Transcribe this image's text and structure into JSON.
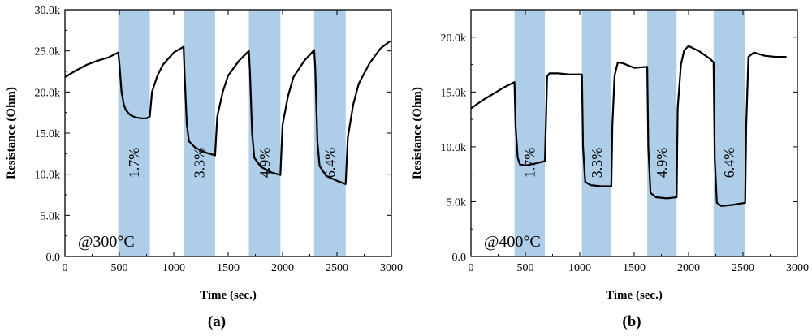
{
  "chart_data": [
    {
      "type": "line",
      "panel_label": "(a)",
      "annotation": "@300°C",
      "xlabel": "Time (sec.)",
      "ylabel": "Resistance (Ohm)",
      "xlim": [
        0,
        3000
      ],
      "ylim": [
        0,
        30000
      ],
      "x_ticks": [
        0,
        500,
        1000,
        1500,
        2000,
        2500,
        3000
      ],
      "x_tick_labels": [
        "0",
        "500",
        "1000",
        "1500",
        "2000",
        "2500",
        "3000"
      ],
      "y_ticks": [
        0,
        5000,
        10000,
        15000,
        20000,
        25000,
        30000
      ],
      "y_tick_labels": [
        "0.0",
        "5.0k",
        "10.0k",
        "15.0k",
        "20.0k",
        "25.0k",
        "30.0k"
      ],
      "exposure_windows": [
        {
          "start": 490,
          "end": 780,
          "label": "1.7%"
        },
        {
          "start": 1090,
          "end": 1380,
          "label": "3.3%"
        },
        {
          "start": 1690,
          "end": 1980,
          "label": "4.9%"
        },
        {
          "start": 2290,
          "end": 2580,
          "label": "6.4%"
        }
      ],
      "series": [
        {
          "name": "Resistance",
          "x": [
            0,
            100,
            200,
            300,
            400,
            490,
            500,
            520,
            540,
            560,
            600,
            650,
            700,
            750,
            780,
            800,
            850,
            900,
            1000,
            1090,
            1100,
            1120,
            1140,
            1200,
            1300,
            1380,
            1400,
            1450,
            1500,
            1600,
            1690,
            1700,
            1720,
            1740,
            1800,
            1900,
            1980,
            2000,
            2050,
            2100,
            2200,
            2290,
            2300,
            2320,
            2340,
            2400,
            2500,
            2580,
            2600,
            2650,
            2700,
            2800,
            2900,
            2990
          ],
          "y": [
            21800,
            22600,
            23300,
            23800,
            24200,
            24800,
            23500,
            20000,
            18500,
            17800,
            17200,
            16900,
            16800,
            16800,
            17000,
            20000,
            22000,
            23300,
            24800,
            25500,
            22000,
            16000,
            14000,
            13200,
            12600,
            12300,
            17000,
            20000,
            22000,
            23800,
            25000,
            22500,
            15000,
            12000,
            10900,
            10200,
            9900,
            16000,
            19500,
            21800,
            23800,
            25100,
            23000,
            14000,
            11000,
            9800,
            9200,
            8800,
            14500,
            18500,
            21000,
            23500,
            25300,
            26200
          ]
        }
      ]
    },
    {
      "type": "line",
      "panel_label": "(b)",
      "annotation": "@400°C",
      "xlabel": "Time (sec.)",
      "ylabel": "Resistance (Ohm)",
      "xlim": [
        0,
        3000
      ],
      "ylim": [
        0,
        22500
      ],
      "x_ticks": [
        0,
        500,
        1000,
        1500,
        2000,
        2500,
        3000
      ],
      "x_tick_labels": [
        "0",
        "500",
        "1000",
        "1500",
        "2000",
        "2500",
        "3000"
      ],
      "y_ticks": [
        0,
        5000,
        10000,
        15000,
        20000
      ],
      "y_tick_labels": [
        "0.0",
        "5.0k",
        "10.0k",
        "15.0k",
        "20.0k"
      ],
      "exposure_windows": [
        {
          "start": 400,
          "end": 680,
          "label": "1.7%"
        },
        {
          "start": 1020,
          "end": 1290,
          "label": "3.3%"
        },
        {
          "start": 1620,
          "end": 1890,
          "label": "4.9%"
        },
        {
          "start": 2230,
          "end": 2520,
          "label": "6.4%"
        }
      ],
      "series": [
        {
          "name": "Resistance",
          "x": [
            0,
            100,
            200,
            300,
            400,
            410,
            430,
            450,
            500,
            600,
            680,
            700,
            720,
            800,
            900,
            1020,
            1030,
            1050,
            1100,
            1200,
            1290,
            1300,
            1320,
            1350,
            1400,
            1500,
            1620,
            1630,
            1650,
            1700,
            1800,
            1890,
            1900,
            1930,
            1960,
            2000,
            2100,
            2200,
            2230,
            2240,
            2260,
            2300,
            2400,
            2520,
            2530,
            2550,
            2600,
            2700,
            2800,
            2900
          ],
          "y": [
            13500,
            14200,
            14800,
            15400,
            15900,
            12000,
            9000,
            8400,
            8300,
            8500,
            8700,
            16400,
            16700,
            16700,
            16600,
            16600,
            10000,
            6800,
            6500,
            6400,
            6400,
            12000,
            16500,
            17700,
            17600,
            17200,
            17300,
            10000,
            5800,
            5400,
            5300,
            5400,
            13500,
            17500,
            18800,
            19200,
            18700,
            18000,
            17700,
            9000,
            4900,
            4600,
            4700,
            4900,
            12000,
            18200,
            18600,
            18300,
            18200,
            18200
          ]
        }
      ]
    }
  ]
}
